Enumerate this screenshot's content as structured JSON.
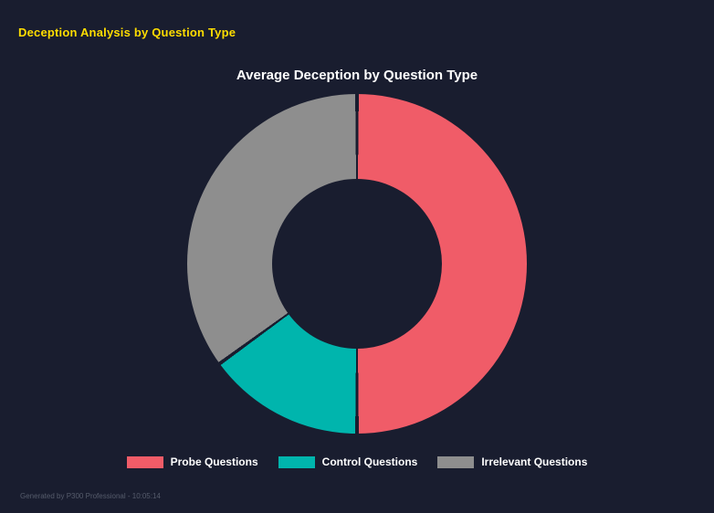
{
  "page": {
    "header_title": "Deception Analysis by Question Type",
    "footer": "Generated by P300 Professional - 10:05:14"
  },
  "colors": {
    "background": "#191d2f",
    "header_title": "#ffdd00",
    "chart_title": "#ffffff",
    "legend_text": "#ffffff",
    "footer_text": "#565c6c"
  },
  "chart_data": {
    "type": "pie",
    "variant": "doughnut",
    "title": "Average Deception by Question Type",
    "labels": [
      "Probe Questions",
      "Control Questions",
      "Irrelevant Questions"
    ],
    "values": [
      50,
      15,
      35
    ],
    "colors": [
      "#f05c68",
      "#00b5ad",
      "#8e8e8e"
    ],
    "legend_position": "bottom",
    "start_angle_deg": 0,
    "clockwise": true,
    "hole_ratio": 0.5,
    "segment_gap_deg": 1.2
  }
}
